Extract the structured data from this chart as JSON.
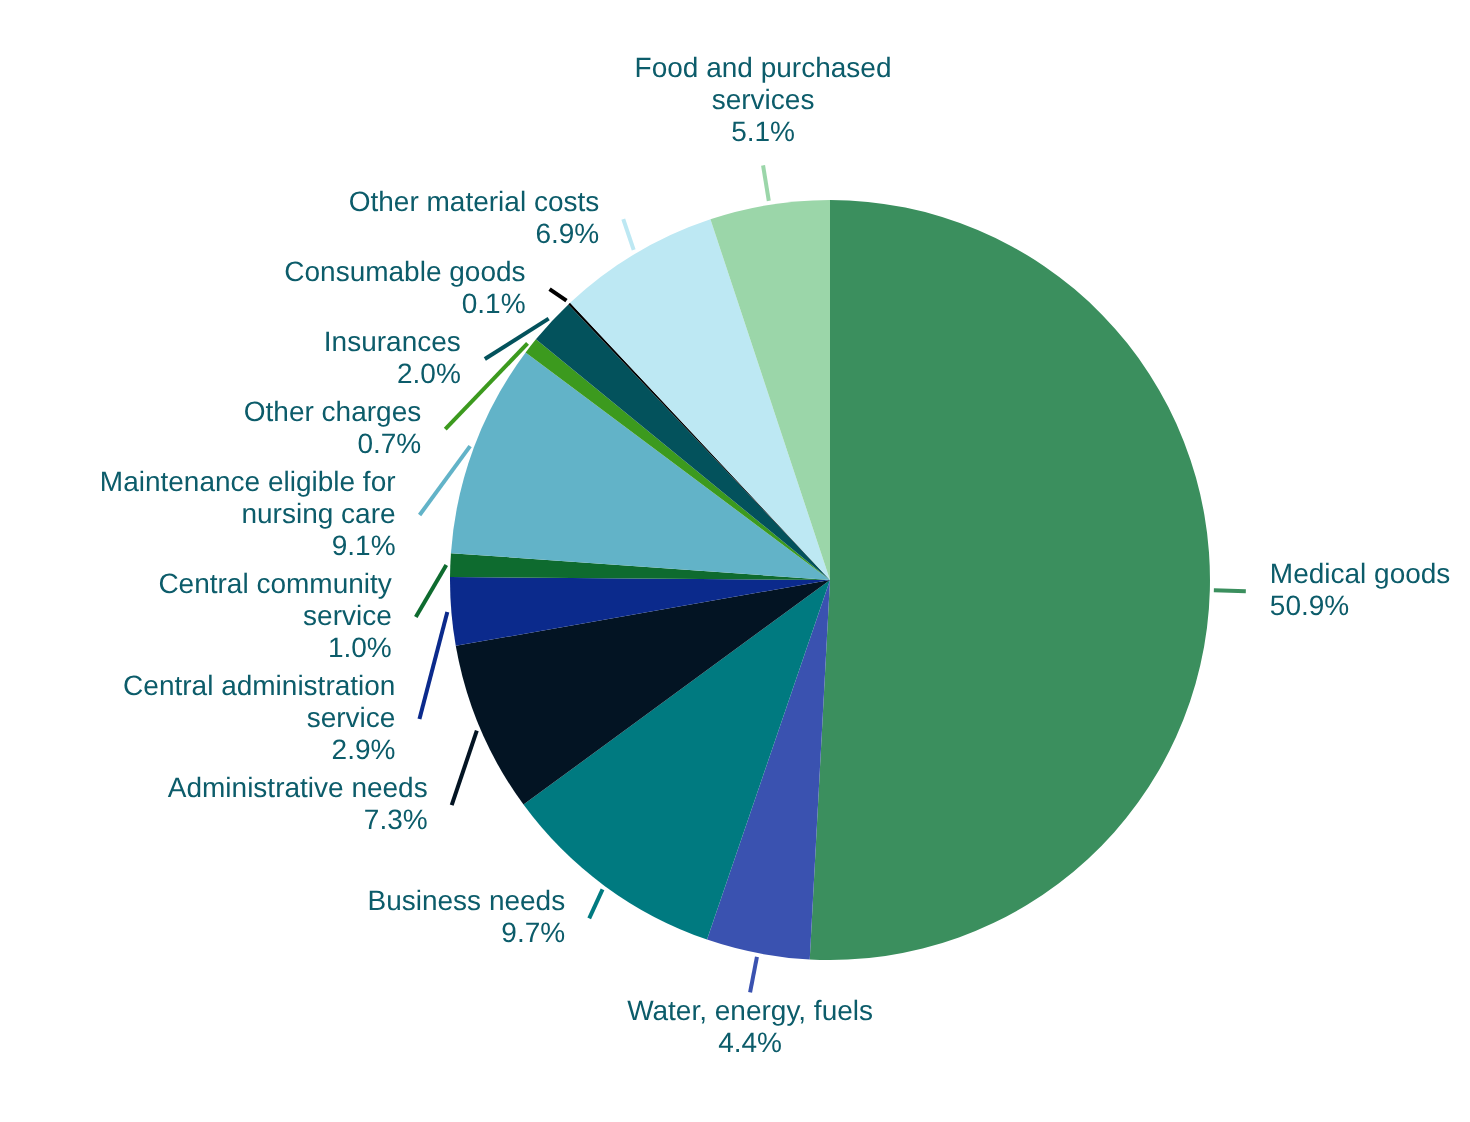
{
  "chart_data": {
    "type": "pie",
    "categories": [
      "Medical goods",
      "Water, energy, fuels",
      "Business needs",
      "Administrative needs",
      "Central administration service",
      "Central community service",
      "Maintenance eligible for nursing care",
      "Other charges",
      "Insurances",
      "Consumable goods",
      "Other material costs",
      "Food and purchased services"
    ],
    "values": [
      50.9,
      4.4,
      9.7,
      7.3,
      2.9,
      1.0,
      9.1,
      0.7,
      2.0,
      0.1,
      6.9,
      5.1
    ],
    "colors": [
      "#3b8f5e",
      "#3a52b0",
      "#007a80",
      "#031423",
      "#0b2a8c",
      "#0e6b2f",
      "#62b3c8",
      "#3c9a1e",
      "#03525c",
      "#000000",
      "#bde8f3",
      "#9bd6a9"
    ],
    "value_labels": [
      "50.9%",
      "4.4%",
      "9.7%",
      "7.3%",
      "2.9%",
      "1.0%",
      "9.1%",
      "0.7%",
      "2.0%",
      "0.1%",
      "6.9%",
      "5.1%"
    ]
  }
}
